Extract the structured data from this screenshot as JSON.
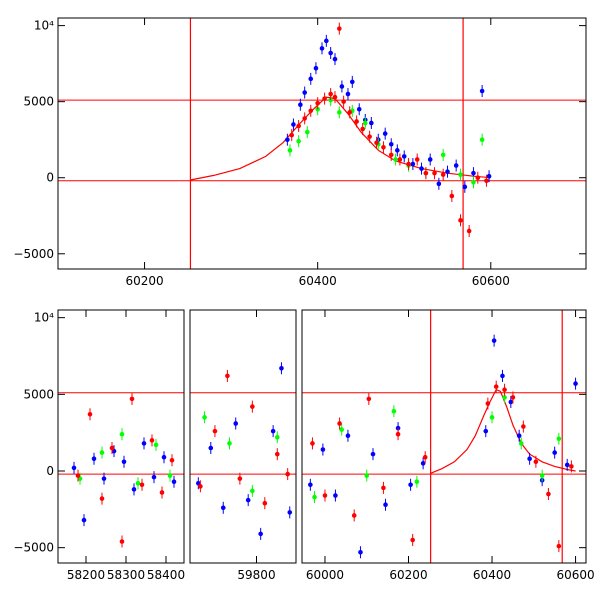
{
  "colors": {
    "model": "#ff0000",
    "blue_series": "#0000ff",
    "green_series": "#00ff00",
    "red_series": "#ff0000",
    "axes": "#000000"
  },
  "chart_data": [
    {
      "type": "scatter",
      "title": "",
      "xlabel": "",
      "ylabel": "",
      "xlim": [
        60100,
        60710
      ],
      "ylim": [
        -6000,
        10500
      ],
      "x_ticks": [
        60200,
        60400,
        60600
      ],
      "y_ticks": [
        {
          "value": -5000,
          "label": "−5000"
        },
        {
          "value": 0,
          "label": "0"
        },
        {
          "value": 5000,
          "label": "5000"
        },
        {
          "value": 10000,
          "label": "10⁴"
        }
      ],
      "reference_lines": {
        "horizontal": [
          -200,
          5100
        ],
        "vertical": [
          60253,
          60568
        ]
      },
      "model_curve": {
        "x": [
          60253,
          60280,
          60310,
          60340,
          60360,
          60380,
          60395,
          60410,
          60420,
          60435,
          60450,
          60470,
          60490,
          60520,
          60550,
          60580,
          60600
        ],
        "y": [
          -150,
          150,
          600,
          1400,
          2300,
          3600,
          4500,
          5300,
          5200,
          4200,
          3000,
          1800,
          1100,
          600,
          300,
          100,
          0
        ]
      },
      "series": [
        {
          "color": "blue",
          "x": [
            60365,
            60372,
            60380,
            60385,
            60392,
            60398,
            60405,
            60410,
            60415,
            60420,
            60428,
            60435,
            60440,
            60448,
            60455,
            60462,
            60470,
            60478,
            60485,
            60492,
            60500,
            60510,
            60520,
            60530,
            60540,
            60550,
            60560,
            60570,
            60580,
            60590,
            60598
          ],
          "y": [
            2500,
            3500,
            4800,
            5600,
            6500,
            7200,
            8500,
            9000,
            8200,
            7800,
            6000,
            5500,
            6300,
            4500,
            3800,
            3600,
            2500,
            2900,
            2200,
            1800,
            1400,
            900,
            600,
            1200,
            -400,
            400,
            800,
            -600,
            300,
            5700,
            100
          ]
        },
        {
          "color": "green",
          "x": [
            60368,
            60378,
            60388,
            60400,
            60415,
            60425,
            60440,
            60455,
            60470,
            60490,
            60505,
            60525,
            60545,
            60565,
            60580,
            60590
          ],
          "y": [
            1800,
            2400,
            3000,
            4500,
            5100,
            4300,
            4400,
            3600,
            2200,
            1200,
            800,
            300,
            1500,
            200,
            -300,
            2500
          ]
        },
        {
          "color": "red",
          "x": [
            60370,
            60378,
            60385,
            60392,
            60400,
            60408,
            60415,
            60420,
            60425,
            60430,
            60437,
            60445,
            60452,
            60460,
            60468,
            60476,
            60485,
            60495,
            60505,
            60515,
            60525,
            60535,
            60545,
            60555,
            60565,
            60575,
            60585,
            60595
          ],
          "y": [
            2800,
            3400,
            3900,
            4400,
            4900,
            5200,
            5500,
            5300,
            9800,
            5000,
            4300,
            3700,
            3200,
            2700,
            2300,
            2000,
            1500,
            1200,
            900,
            1200,
            300,
            300,
            200,
            -1200,
            -2800,
            -3500,
            0,
            -200
          ]
        }
      ]
    },
    {
      "type": "scatter",
      "title": "",
      "xlabel": "",
      "ylabel": "",
      "panels": [
        {
          "xlim": [
            58130,
            58445
          ],
          "x_ticks": [
            58200,
            58300,
            58400
          ]
        },
        {
          "xlim": [
            59640,
            59895
          ],
          "x_ticks": [
            59800
          ]
        },
        {
          "xlim": [
            59945,
            60625
          ],
          "x_ticks": [
            60000,
            60200,
            60400,
            60600
          ]
        }
      ],
      "ylim": [
        -6000,
        10500
      ],
      "y_ticks": [
        {
          "value": -5000,
          "label": "−5000"
        },
        {
          "value": 0,
          "label": "0"
        },
        {
          "value": 5000,
          "label": "5000"
        },
        {
          "value": 10000,
          "label": "10⁴"
        }
      ],
      "reference_lines": {
        "horizontal": [
          -200,
          5100
        ],
        "vertical": [
          60253,
          60568
        ]
      },
      "model_curve": {
        "x": [
          60253,
          60280,
          60310,
          60340,
          60360,
          60380,
          60395,
          60410,
          60420,
          60435,
          60450,
          60470,
          60490,
          60520,
          60550,
          60580,
          60600
        ],
        "y": [
          -150,
          150,
          600,
          1400,
          2300,
          3600,
          4500,
          5300,
          5200,
          4200,
          3000,
          1800,
          1100,
          600,
          300,
          100,
          0
        ]
      },
      "series": [
        {
          "color": "blue",
          "x": [
            58170,
            58195,
            58220,
            58245,
            58270,
            58295,
            58320,
            58345,
            58370,
            58395,
            58420,
            59660,
            59690,
            59720,
            59750,
            59780,
            59810,
            59840,
            59860,
            59880,
            59965,
            59995,
            60025,
            60055,
            60085,
            60115,
            60145,
            60175,
            60205,
            60235,
            60385,
            60405,
            60425,
            60445,
            60465,
            60490,
            60520,
            60550,
            60580,
            60600
          ],
          "y": [
            200,
            -3200,
            800,
            -500,
            1300,
            600,
            -1200,
            1800,
            -400,
            900,
            -700,
            -800,
            1500,
            -2400,
            3100,
            -1900,
            -4100,
            2600,
            6700,
            -2700,
            -900,
            1400,
            -1600,
            2300,
            -5300,
            1100,
            -2200,
            2800,
            -900,
            500,
            2600,
            8500,
            6200,
            4500,
            2300,
            800,
            -600,
            1200,
            400,
            5700
          ]
        },
        {
          "color": "green",
          "x": [
            58185,
            58240,
            58290,
            58330,
            58375,
            58410,
            59675,
            59735,
            59790,
            59850,
            59975,
            60040,
            60100,
            60165,
            60220,
            60400,
            60430,
            60470,
            60520,
            60560
          ],
          "y": [
            -500,
            1200,
            2400,
            -800,
            1700,
            -300,
            3500,
            1800,
            -1300,
            2200,
            -1700,
            2700,
            -300,
            3900,
            -700,
            3500,
            4800,
            1800,
            -300,
            2100
          ]
        },
        {
          "color": "red",
          "x": [
            58180,
            58210,
            58240,
            58265,
            58290,
            58315,
            58340,
            58365,
            58390,
            58415,
            59665,
            59700,
            59730,
            59760,
            59790,
            59820,
            59850,
            59875,
            59970,
            60000,
            60035,
            60070,
            60105,
            60140,
            60175,
            60210,
            60240,
            60390,
            60410,
            60430,
            60450,
            60475,
            60505,
            60535,
            60560,
            60590
          ],
          "y": [
            -300,
            3700,
            -1800,
            1500,
            -4600,
            4700,
            -900,
            2000,
            -1400,
            700,
            -1000,
            2600,
            6200,
            -500,
            4200,
            -2100,
            1100,
            -200,
            1800,
            -1600,
            3100,
            -2900,
            4700,
            -1100,
            2400,
            -4500,
            900,
            4400,
            5500,
            5300,
            4800,
            2900,
            600,
            -1500,
            -4900,
            300
          ]
        }
      ]
    }
  ]
}
